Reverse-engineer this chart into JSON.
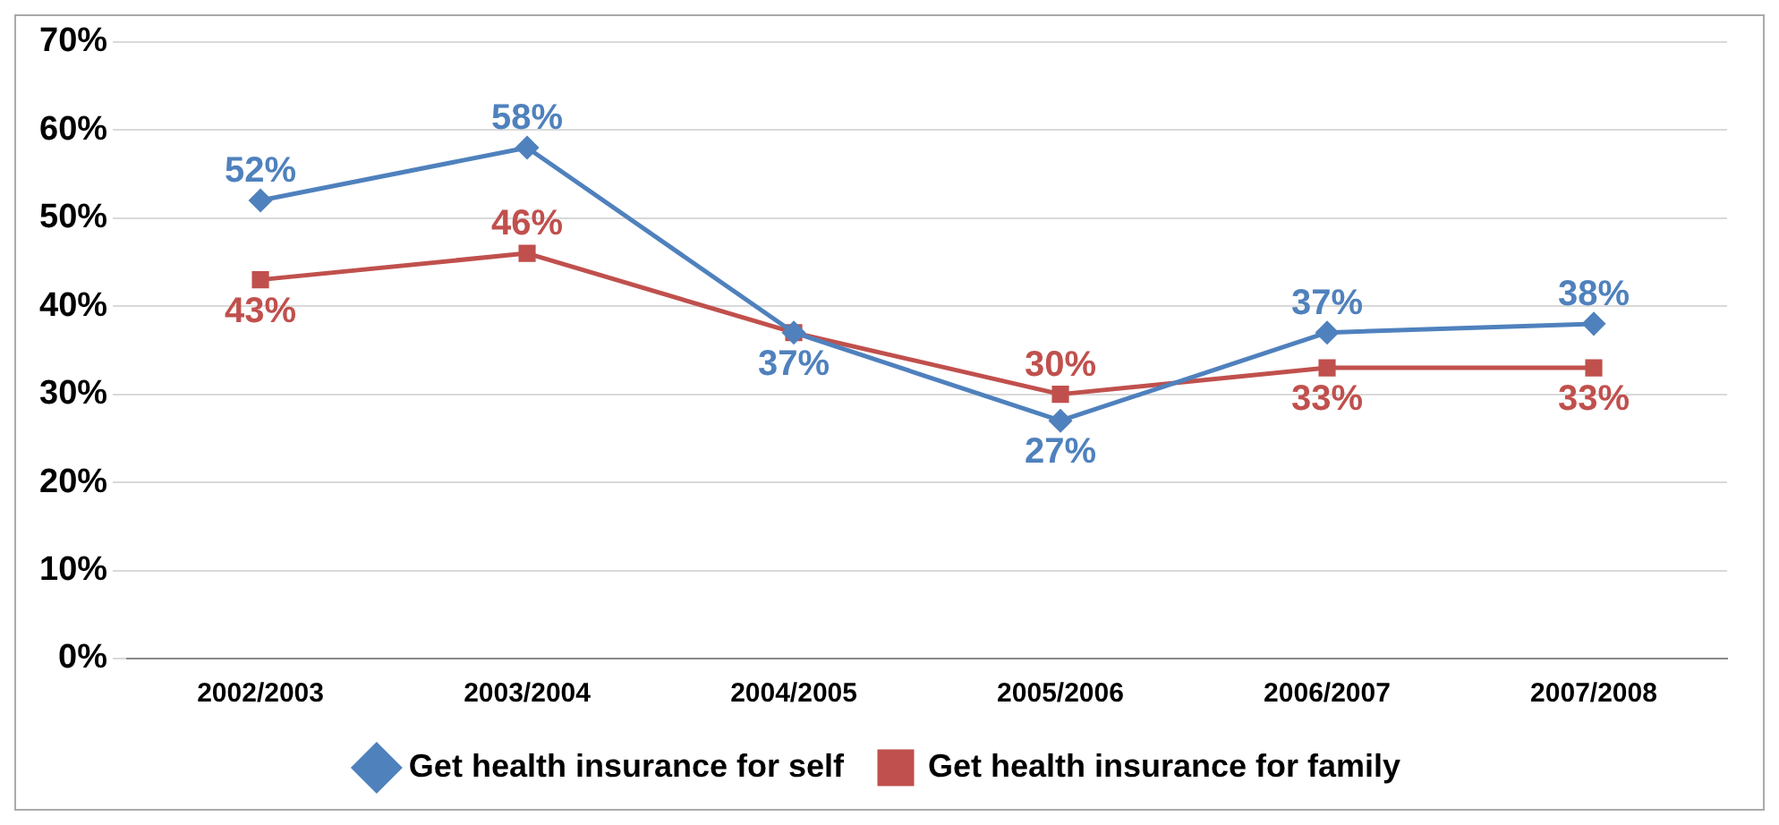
{
  "chart_data": {
    "type": "line",
    "categories": [
      "2002/2003",
      "2003/2004",
      "2004/2005",
      "2005/2006",
      "2006/2007",
      "2007/2008"
    ],
    "series": [
      {
        "name": "Get health insurance for self",
        "color": "#4f81bd",
        "marker": "diamond",
        "values": [
          52,
          58,
          37,
          27,
          37,
          38
        ],
        "value_labels": [
          "52%",
          "58%",
          "37%",
          "27%",
          "37%",
          "38%"
        ]
      },
      {
        "name": "Get health insurance for family",
        "color": "#c0504d",
        "marker": "square",
        "values": [
          43,
          46,
          37,
          30,
          33,
          33
        ],
        "value_labels": [
          "43%",
          "46%",
          null,
          "30%",
          "33%",
          "33%"
        ]
      }
    ],
    "ylim": [
      0,
      70
    ],
    "yticks": [
      {
        "value": 0,
        "label": "0%"
      },
      {
        "value": 10,
        "label": "10%"
      },
      {
        "value": 20,
        "label": "20%"
      },
      {
        "value": 30,
        "label": "30%"
      },
      {
        "value": 40,
        "label": "40%"
      },
      {
        "value": 50,
        "label": "50%"
      },
      {
        "value": 60,
        "label": "60%"
      },
      {
        "value": 70,
        "label": "70%"
      }
    ],
    "grid": "y",
    "legend": "bottom"
  }
}
